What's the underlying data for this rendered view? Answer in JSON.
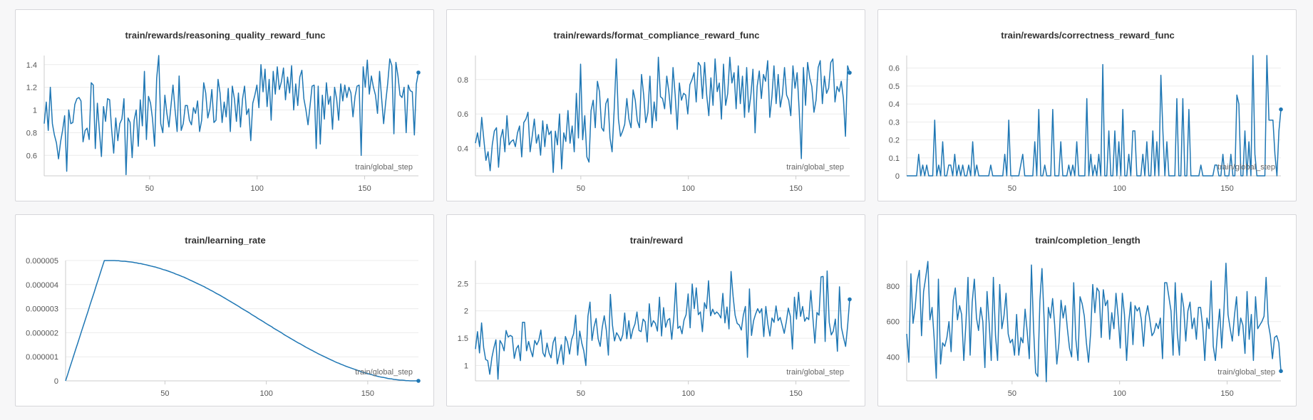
{
  "colors": {
    "series": "#1f77b4",
    "grid": "#ececec",
    "axis": "#cccccc",
    "text": "#555555"
  },
  "chart_data": [
    {
      "type": "line",
      "title": "train/rewards/reasoning_quality_reward_func",
      "xlabel": "train/global_step",
      "xlim": [
        1,
        175
      ],
      "ylim": [
        0.42,
        1.48
      ],
      "xticks": [
        50,
        100,
        150
      ],
      "yticks": [
        0.6,
        0.8,
        1,
        1.2,
        1.4
      ],
      "ytick_labels": [
        "0.6",
        "0.8",
        "1",
        "1.2",
        "1.4"
      ],
      "grid": true,
      "values": [
        0.88,
        1.07,
        0.82,
        1.2,
        0.88,
        0.78,
        0.71,
        0.57,
        0.72,
        0.82,
        0.95,
        0.46,
        1.0,
        0.88,
        0.89,
        1.05,
        1.1,
        1.11,
        1.08,
        0.72,
        0.82,
        0.84,
        0.74,
        1.24,
        1.22,
        0.66,
        1.06,
        0.81,
        0.59,
        1.03,
        0.9,
        1.1,
        1.09,
        0.82,
        0.62,
        0.93,
        0.73,
        0.88,
        0.92,
        1.1,
        0.43,
        0.93,
        0.89,
        0.58,
        0.91,
        1.0,
        0.68,
        1.09,
        0.86,
        1.34,
        0.74,
        1.12,
        1.06,
        0.92,
        0.68,
        1.28,
        1.48,
        0.88,
        0.8,
        1.13,
        0.97,
        0.85,
        1.04,
        1.22,
        1.0,
        0.81,
        1.3,
        0.82,
        0.88,
        1.04,
        1.04,
        0.91,
        0.87,
        1.02,
        0.97,
        1.08,
        0.81,
        0.91,
        1.24,
        1.15,
        0.93,
        1.01,
        1.18,
        0.89,
        0.91,
        1.27,
        1.15,
        0.89,
        1.07,
        0.94,
        1.19,
        0.81,
        1.21,
        1.1,
        0.9,
        1.15,
        0.85,
        1.1,
        1.21,
        0.96,
        1.01,
        0.73,
        1.06,
        1.13,
        1.22,
        1.02,
        1.4,
        1.16,
        1.36,
        1.03,
        1.27,
        0.91,
        1.34,
        1.14,
        1.38,
        1.18,
        1.25,
        1.37,
        1.09,
        1.29,
        1.15,
        1.39,
        1.0,
        1.23,
        1.04,
        1.29,
        1.35,
        1.1,
        1.0,
        0.87,
        1.04,
        1.21,
        1.22,
        0.66,
        1.21,
        0.7,
        1.13,
        0.92,
        1.24,
        1.05,
        1.12,
        0.83,
        1.2,
        1.1,
        0.91,
        1.23,
        1.08,
        1.22,
        1.11,
        1.2,
        1.15,
        0.94,
        1.12,
        1.21,
        1.22,
        0.6,
        1.38,
        1.2,
        1.44,
        1.14,
        1.3,
        1.2,
        1.13,
        0.97,
        1.34,
        1.1,
        0.88,
        1.07,
        1.24,
        1.45,
        1.39,
        0.79,
        1.42,
        1.3,
        1.13,
        1.11,
        1.2,
        0.8,
        1.22,
        1.17,
        1.16,
        0.78,
        1.23,
        1.33
      ]
    },
    {
      "type": "line",
      "title": "train/rewards/format_compliance_reward_func",
      "xlabel": "train/global_step",
      "xlim": [
        1,
        175
      ],
      "ylim": [
        0.24,
        0.94
      ],
      "xticks": [
        50,
        100,
        150
      ],
      "yticks": [
        0.4,
        0.6,
        0.8
      ],
      "ytick_labels": [
        "0.4",
        "0.6",
        "0.8"
      ],
      "grid": true,
      "values": [
        0.43,
        0.49,
        0.41,
        0.58,
        0.45,
        0.33,
        0.38,
        0.27,
        0.42,
        0.5,
        0.52,
        0.29,
        0.46,
        0.51,
        0.38,
        0.59,
        0.42,
        0.44,
        0.45,
        0.41,
        0.49,
        0.53,
        0.35,
        0.55,
        0.57,
        0.61,
        0.38,
        0.47,
        0.57,
        0.43,
        0.48,
        0.36,
        0.56,
        0.41,
        0.54,
        0.48,
        0.5,
        0.26,
        0.5,
        0.42,
        0.6,
        0.28,
        0.49,
        0.44,
        0.62,
        0.43,
        0.53,
        0.38,
        0.72,
        0.46,
        0.89,
        0.45,
        0.59,
        0.35,
        0.32,
        0.62,
        0.68,
        0.52,
        0.79,
        0.73,
        0.52,
        0.5,
        0.66,
        0.69,
        0.46,
        0.38,
        0.63,
        0.92,
        0.57,
        0.47,
        0.5,
        0.54,
        0.69,
        0.57,
        0.52,
        0.74,
        0.68,
        0.56,
        0.52,
        0.83,
        0.71,
        0.55,
        0.61,
        0.82,
        0.52,
        0.67,
        0.56,
        0.93,
        0.7,
        0.69,
        0.63,
        0.82,
        0.73,
        0.6,
        0.87,
        0.71,
        0.51,
        0.78,
        0.68,
        0.72,
        0.71,
        0.6,
        0.77,
        0.8,
        0.84,
        0.67,
        0.9,
        0.88,
        0.69,
        0.9,
        0.71,
        0.59,
        0.81,
        0.65,
        0.92,
        0.73,
        0.78,
        0.57,
        0.89,
        0.65,
        0.72,
        0.93,
        0.78,
        0.84,
        0.63,
        0.88,
        0.66,
        0.82,
        0.58,
        0.87,
        0.61,
        0.71,
        0.86,
        0.49,
        0.76,
        0.85,
        0.69,
        0.83,
        0.79,
        0.91,
        0.58,
        0.7,
        0.88,
        0.66,
        0.83,
        0.64,
        0.71,
        0.87,
        0.71,
        0.68,
        0.59,
        0.88,
        0.75,
        0.84,
        0.62,
        0.34,
        0.87,
        0.65,
        0.9,
        0.81,
        0.76,
        0.61,
        0.68,
        0.87,
        0.91,
        0.66,
        0.82,
        0.72,
        0.75,
        0.9,
        0.92,
        0.67,
        0.76,
        0.73,
        0.79,
        0.69,
        0.47,
        0.88,
        0.84
      ]
    },
    {
      "type": "line",
      "title": "train/rewards/correctness_reward_func",
      "xlabel": "train/global_step",
      "xlim": [
        1,
        175
      ],
      "ylim": [
        0,
        0.67
      ],
      "xticks": [
        50,
        100,
        150
      ],
      "yticks": [
        0,
        0.1,
        0.2,
        0.3,
        0.4,
        0.5,
        0.6
      ],
      "ytick_labels": [
        "0",
        "0.1",
        "0.2",
        "0.3",
        "0.4",
        "0.5",
        "0.6"
      ],
      "grid": true,
      "values": [
        0,
        0,
        0,
        0,
        0,
        0,
        0.12,
        0,
        0.06,
        0,
        0.06,
        0,
        0,
        0,
        0.31,
        0,
        0.06,
        0,
        0.19,
        0,
        0,
        0.06,
        0.06,
        0,
        0.12,
        0,
        0.06,
        0,
        0.06,
        0,
        0,
        0.06,
        0,
        0.19,
        0,
        0.06,
        0,
        0,
        0,
        0,
        0,
        0,
        0.06,
        0,
        0,
        0,
        0,
        0,
        0,
        0.12,
        0,
        0.31,
        0,
        0,
        0,
        0,
        0,
        0.06,
        0.12,
        0,
        0,
        0,
        0,
        0,
        0.19,
        0,
        0.37,
        0,
        0,
        0.06,
        0,
        0,
        0,
        0.37,
        0,
        0,
        0,
        0.19,
        0,
        0,
        0,
        0.06,
        0,
        0.06,
        0,
        0.19,
        0,
        0,
        0,
        0,
        0.43,
        0,
        0.12,
        0,
        0.06,
        0,
        0.12,
        0,
        0.62,
        0,
        0,
        0.25,
        0,
        0,
        0.25,
        0,
        0.19,
        0,
        0.37,
        0,
        0,
        0.12,
        0,
        0.25,
        0.25,
        0,
        0,
        0,
        0.12,
        0,
        0.19,
        0,
        0,
        0.25,
        0,
        0.19,
        0,
        0.56,
        0.25,
        0,
        0.19,
        0,
        0,
        0,
        0,
        0.43,
        0,
        0,
        0.43,
        0,
        0,
        0.37,
        0,
        0,
        0,
        0,
        0,
        0.06,
        0,
        0,
        0,
        0,
        0,
        0,
        0.06,
        0.06,
        0,
        0,
        0.12,
        0,
        0,
        0,
        0.12,
        0,
        0,
        0.45,
        0.4,
        0,
        0,
        0.25,
        0,
        0.19,
        0,
        0.67,
        0.12,
        0,
        0,
        0,
        0,
        0,
        0.67,
        0.31,
        0.31,
        0.31,
        0.12,
        0,
        0.25,
        0.37
      ]
    },
    {
      "type": "line",
      "title": "train/learning_rate",
      "xlabel": "train/global_step",
      "xlim": [
        1,
        175
      ],
      "ylim": [
        0,
        5e-06
      ],
      "xticks": [
        50,
        100,
        150
      ],
      "yticks": [
        0,
        1e-06,
        2e-06,
        3e-06,
        4e-06,
        5e-06
      ],
      "ytick_labels": [
        "0",
        "0.000001",
        "0.000002",
        "0.000003",
        "0.000004",
        "0.000005"
      ],
      "grid": true,
      "values": [
        0,
        2.6e-07,
        5.3e-07,
        7.9e-07,
        1.05e-06,
        1.32e-06,
        1.58e-06,
        1.84e-06,
        2.11e-06,
        2.37e-06,
        2.63e-06,
        2.89e-06,
        3.16e-06,
        3.42e-06,
        3.68e-06,
        3.95e-06,
        4.21e-06,
        4.47e-06,
        4.74e-06,
        5e-06,
        5e-06,
        5e-06,
        5e-06,
        5e-06,
        5e-06,
        4.99e-06,
        4.99e-06,
        4.98e-06,
        4.97e-06,
        4.97e-06,
        4.96e-06,
        4.95e-06,
        4.94e-06,
        4.93e-06,
        4.91e-06,
        4.9e-06,
        4.88e-06,
        4.87e-06,
        4.85e-06,
        4.83e-06,
        4.81e-06,
        4.79e-06,
        4.77e-06,
        4.75e-06,
        4.73e-06,
        4.7e-06,
        4.68e-06,
        4.65e-06,
        4.62e-06,
        4.6e-06,
        4.57e-06,
        4.54e-06,
        4.51e-06,
        4.48e-06,
        4.44e-06,
        4.41e-06,
        4.38e-06,
        4.34e-06,
        4.31e-06,
        4.27e-06,
        4.23e-06,
        4.19e-06,
        4.15e-06,
        4.11e-06,
        4.07e-06,
        4.03e-06,
        3.99e-06,
        3.95e-06,
        3.91e-06,
        3.86e-06,
        3.82e-06,
        3.77e-06,
        3.73e-06,
        3.68e-06,
        3.63e-06,
        3.59e-06,
        3.54e-06,
        3.49e-06,
        3.44e-06,
        3.39e-06,
        3.34e-06,
        3.29e-06,
        3.24e-06,
        3.19e-06,
        3.14e-06,
        3.09e-06,
        3.03e-06,
        2.98e-06,
        2.93e-06,
        2.88e-06,
        2.83e-06,
        2.77e-06,
        2.72e-06,
        2.67e-06,
        2.61e-06,
        2.56e-06,
        2.51e-06,
        2.46e-06,
        2.4e-06,
        2.35e-06,
        2.3e-06,
        2.25e-06,
        2.19e-06,
        2.14e-06,
        2.09e-06,
        2.04e-06,
        1.99e-06,
        1.93e-06,
        1.88e-06,
        1.83e-06,
        1.78e-06,
        1.73e-06,
        1.68e-06,
        1.63e-06,
        1.58e-06,
        1.54e-06,
        1.49e-06,
        1.44e-06,
        1.39e-06,
        1.35e-06,
        1.3e-06,
        1.26e-06,
        1.21e-06,
        1.17e-06,
        1.12e-06,
        1.08e-06,
        1.04e-06,
        1e-06,
        9.6e-07,
        9.2e-07,
        8.8e-07,
        8.4e-07,
        8e-07,
        7.6e-07,
        7.3e-07,
        6.9e-07,
        6.6e-07,
        6.2e-07,
        5.9e-07,
        5.6e-07,
        5.3e-07,
        5e-07,
        4.7e-07,
        4.4e-07,
        4.1e-07,
        3.8e-07,
        3.5e-07,
        3.3e-07,
        3e-07,
        2.8e-07,
        2.6e-07,
        2.3e-07,
        2.1e-07,
        1.9e-07,
        1.7e-07,
        1.5e-07,
        1.4e-07,
        1.2e-07,
        1e-07,
        9e-08,
        8e-08,
        6e-08,
        5e-08,
        4e-08,
        3e-08,
        3e-08,
        2e-08,
        1e-08,
        1e-08,
        0,
        0,
        0,
        0,
        0
      ]
    },
    {
      "type": "line",
      "title": "train/reward",
      "xlabel": "train/global_step",
      "xlim": [
        1,
        175
      ],
      "ylim": [
        0.72,
        2.92
      ],
      "xticks": [
        50,
        100,
        150
      ],
      "yticks": [
        1,
        1.5,
        2,
        2.5
      ],
      "ytick_labels": [
        "1",
        "1.5",
        "2",
        "2.5"
      ],
      "grid": true,
      "values": [
        1.3,
        1.62,
        1.23,
        1.78,
        1.33,
        1.11,
        1.09,
        0.84,
        1.14,
        1.32,
        1.47,
        0.75,
        1.46,
        1.39,
        1.27,
        1.64,
        1.52,
        1.55,
        1.53,
        1.13,
        1.31,
        1.37,
        1.09,
        1.79,
        1.79,
        1.27,
        1.44,
        1.28,
        1.16,
        1.46,
        1.38,
        1.46,
        1.65,
        1.23,
        1.16,
        1.41,
        1.23,
        1.14,
        1.42,
        1.52,
        1.03,
        1.21,
        1.38,
        1.02,
        1.53,
        1.43,
        1.21,
        1.47,
        1.58,
        1.92,
        1.19,
        1.63,
        1.41,
        1.27,
        1.0,
        1.9,
        2.16,
        1.46,
        1.71,
        1.86,
        1.49,
        1.35,
        1.7,
        1.91,
        1.65,
        1.19,
        2.3,
        1.74,
        1.45,
        1.6,
        1.54,
        1.45,
        1.56,
        1.96,
        1.49,
        1.82,
        1.49,
        1.66,
        1.76,
        1.98,
        1.64,
        1.62,
        1.85,
        1.8,
        1.43,
        2.13,
        1.71,
        1.82,
        1.77,
        1.63,
        2.25,
        1.54,
        2.06,
        1.7,
        1.83,
        1.86,
        1.48,
        1.88,
        2.51,
        1.68,
        1.72,
        1.58,
        1.83,
        1.93,
        2.31,
        1.69,
        2.49,
        2.04,
        2.42,
        1.93,
        1.98,
        1.62,
        2.15,
        2.04,
        2.55,
        1.91,
        2.03,
        1.94,
        1.98,
        1.94,
        1.87,
        2.32,
        1.78,
        2.07,
        1.67,
        2.72,
        2.26,
        1.92,
        1.77,
        1.74,
        1.65,
        1.92,
        2.08,
        1.15,
        2.4,
        1.55,
        1.82,
        1.94,
        2.04,
        1.96,
        2.04,
        1.53,
        2.08,
        1.76,
        1.54,
        1.87,
        1.79,
        2.09,
        1.82,
        1.88,
        1.74,
        1.59,
        1.8,
        2.05,
        1.9,
        1.3,
        2.25,
        1.85,
        2.34,
        1.9,
        2.08,
        1.81,
        1.88,
        1.84,
        2.37,
        1.87,
        1.41,
        1.97,
        1.92,
        2.62,
        2.63,
        1.44,
        2.73,
        1.79,
        1.56,
        1.63,
        1.85,
        1.26,
        2.44,
        1.69,
        1.51,
        1.35,
        1.72,
        2.21
      ]
    },
    {
      "type": "line",
      "title": "train/completion_length",
      "xlabel": "train/global_step",
      "xlim": [
        1,
        175
      ],
      "ylim": [
        265,
        945
      ],
      "xticks": [
        50,
        100,
        150
      ],
      "yticks": [
        400,
        600,
        800
      ],
      "ytick_labels": [
        "400",
        "600",
        "800"
      ],
      "grid": true,
      "values": [
        530,
        370,
        870,
        590,
        680,
        830,
        890,
        520,
        770,
        850,
        940,
        610,
        680,
        500,
        280,
        840,
        360,
        480,
        460,
        510,
        600,
        430,
        720,
        790,
        610,
        690,
        640,
        380,
        590,
        850,
        410,
        710,
        840,
        620,
        550,
        680,
        600,
        340,
        770,
        590,
        380,
        850,
        520,
        380,
        810,
        560,
        630,
        760,
        530,
        480,
        500,
        410,
        640,
        410,
        510,
        480,
        670,
        540,
        390,
        920,
        560,
        310,
        290,
        720,
        900,
        610,
        260,
        680,
        620,
        730,
        580,
        360,
        480,
        720,
        620,
        690,
        560,
        450,
        400,
        820,
        500,
        380,
        740,
        700,
        630,
        480,
        370,
        540,
        810,
        650,
        790,
        770,
        510,
        780,
        690,
        720,
        500,
        650,
        560,
        760,
        630,
        450,
        760,
        640,
        380,
        590,
        710,
        470,
        690,
        660,
        680,
        610,
        460,
        630,
        690,
        610,
        520,
        540,
        590,
        560,
        620,
        390,
        820,
        820,
        740,
        660,
        410,
        820,
        530,
        410,
        760,
        680,
        490,
        660,
        710,
        560,
        620,
        500,
        680,
        680,
        570,
        380,
        620,
        560,
        830,
        460,
        380,
        540,
        670,
        450,
        650,
        930,
        640,
        560,
        490,
        630,
        740,
        520,
        620,
        580,
        420,
        770,
        500,
        640,
        380,
        740,
        560,
        580,
        600,
        630,
        850,
        590,
        520,
        390,
        510,
        520,
        480,
        320
      ]
    }
  ]
}
